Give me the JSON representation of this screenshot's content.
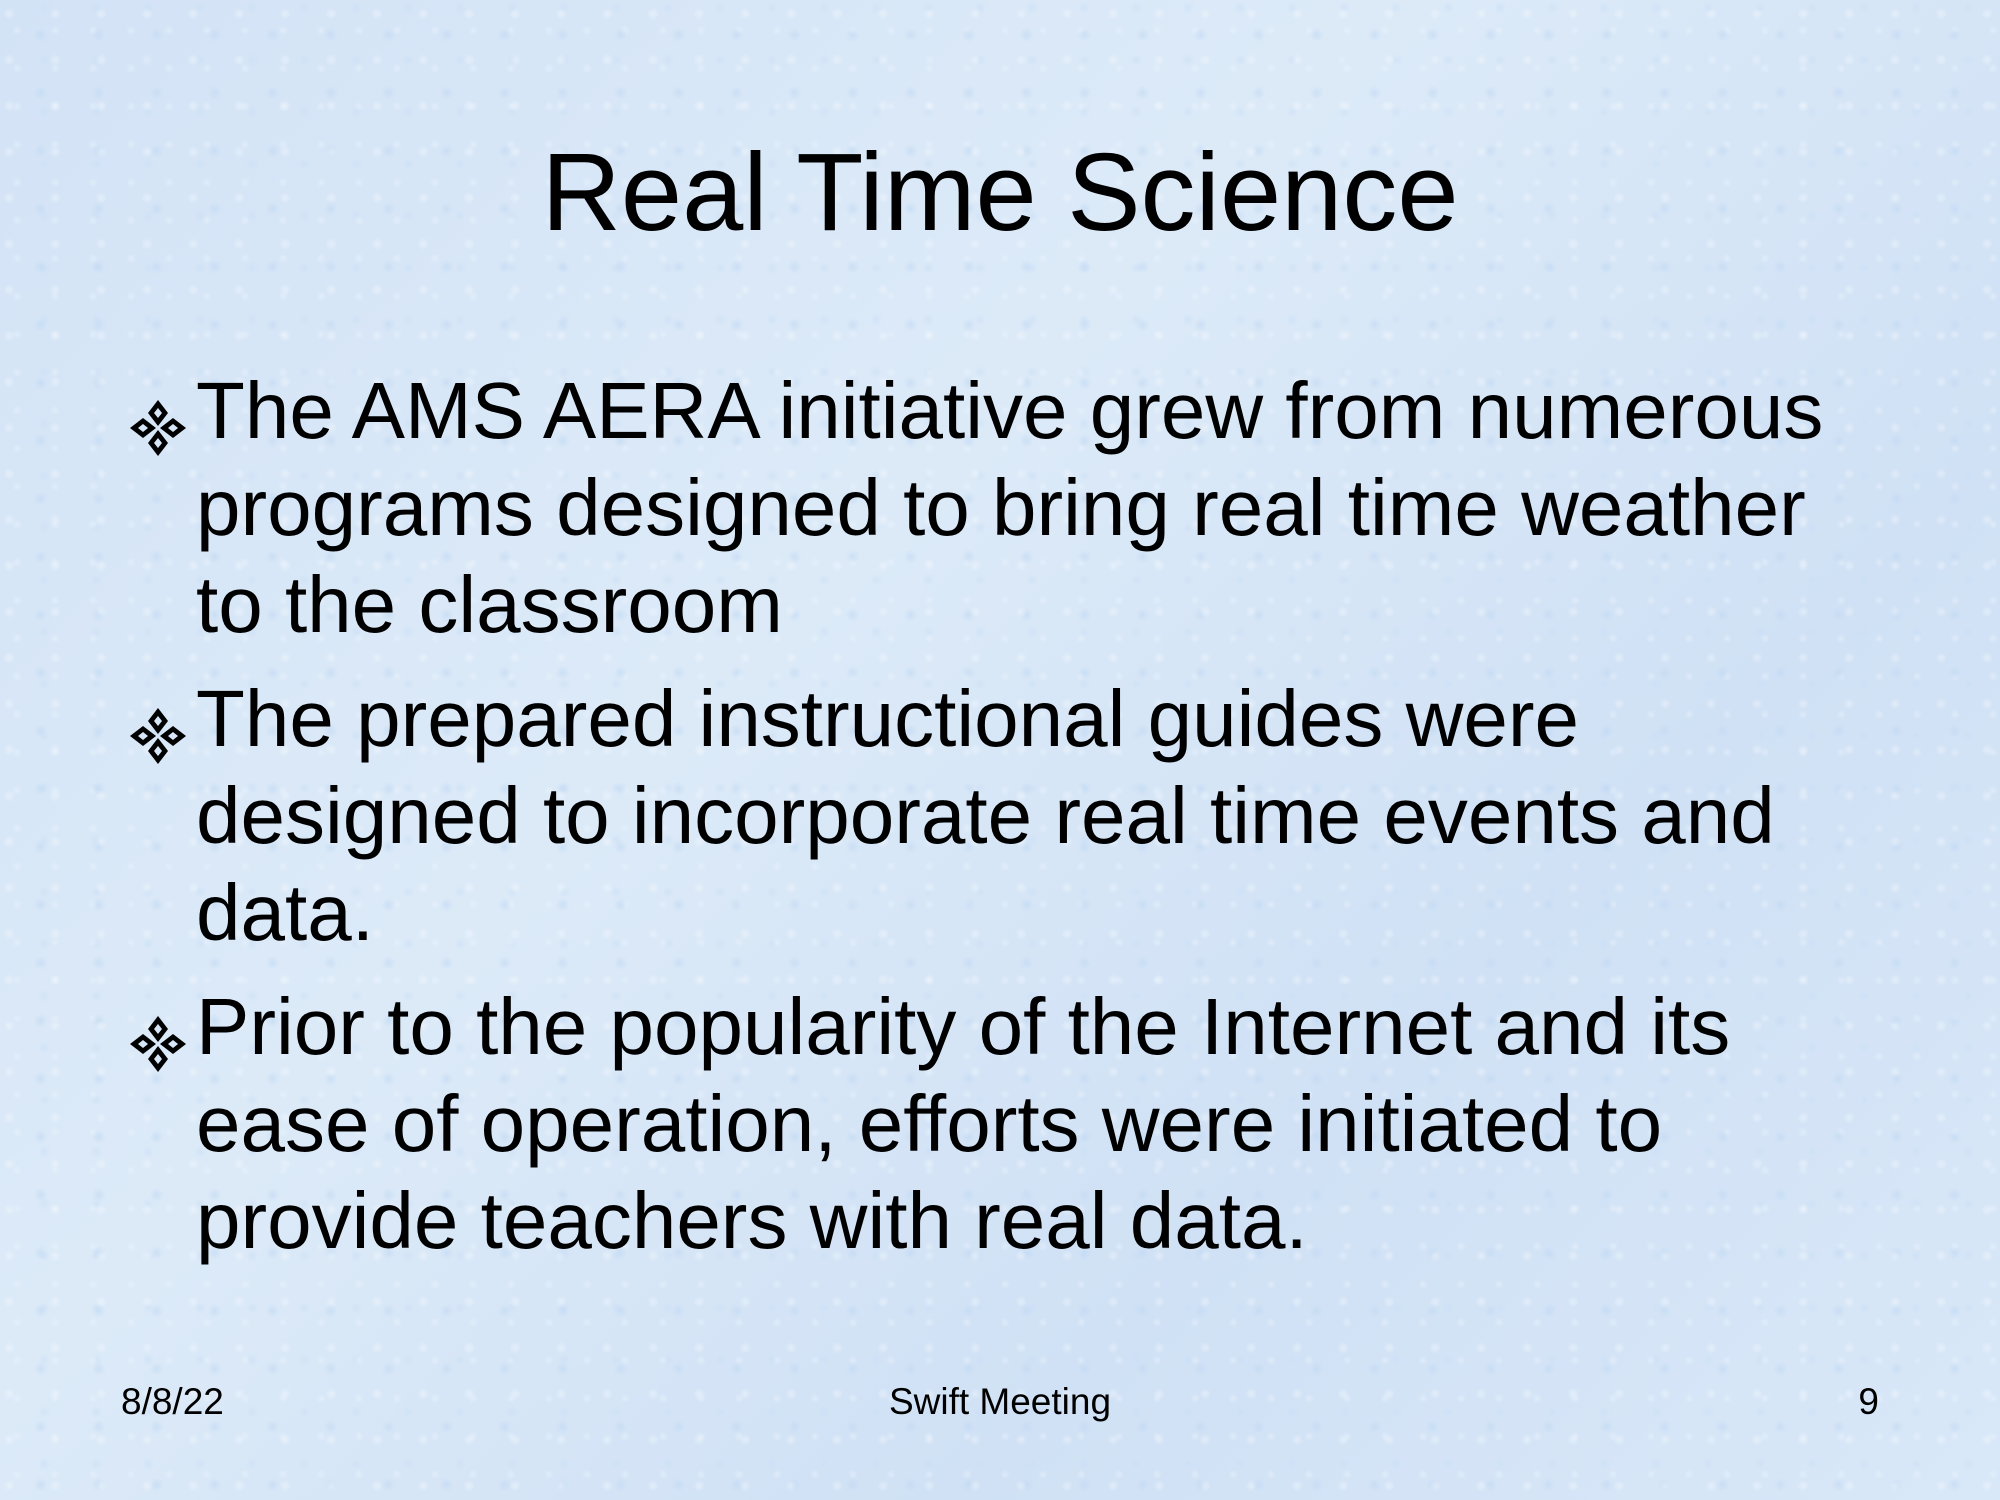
{
  "slide": {
    "title": "Real Time Science",
    "bullets": [
      {
        "icon": "four-diamond-bullet-icon",
        "text": "The AMS AERA initiative grew from numerous programs designed to bring real time weather to the classroom"
      },
      {
        "icon": "four-diamond-bullet-icon",
        "text": "The prepared instructional guides were designed to incorporate real time events and data."
      },
      {
        "icon": "four-diamond-bullet-icon",
        "text": "Prior to the popularity of the Internet and its ease of operation, efforts were initiated to provide teachers with real data."
      }
    ],
    "footer": {
      "date": "8/8/22",
      "center": "Swift Meeting",
      "page_number": "9"
    }
  },
  "colors": {
    "background": "#d6e6f7",
    "text": "#000000"
  }
}
